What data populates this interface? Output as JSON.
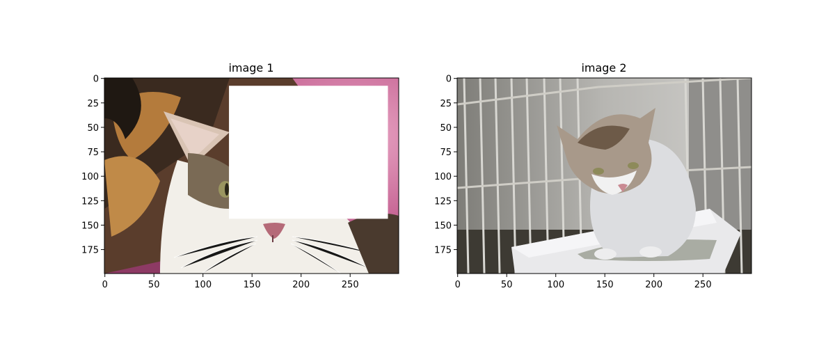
{
  "figure": {
    "panels": [
      {
        "id": "image-1",
        "title": "image 1",
        "image_width": 300,
        "image_height": 200,
        "x_ticks": [
          0,
          50,
          100,
          150,
          200,
          250
        ],
        "y_ticks": [
          0,
          25,
          50,
          75,
          100,
          125,
          150,
          175
        ],
        "description": "calico cat close-up with a white rectangular occlusion patch",
        "occlusion": {
          "x0": 127,
          "x1": 289,
          "y0": 8,
          "y1": 144,
          "color": "#ffffff"
        }
      },
      {
        "id": "image-2",
        "title": "image 2",
        "image_width": 300,
        "image_height": 200,
        "x_ticks": [
          0,
          50,
          100,
          150,
          200,
          250
        ],
        "y_ticks": [
          0,
          25,
          50,
          75,
          100,
          125,
          150,
          175
        ],
        "description": "tabby-and-white kitten sitting in a litter tray inside a metal cage"
      }
    ]
  }
}
